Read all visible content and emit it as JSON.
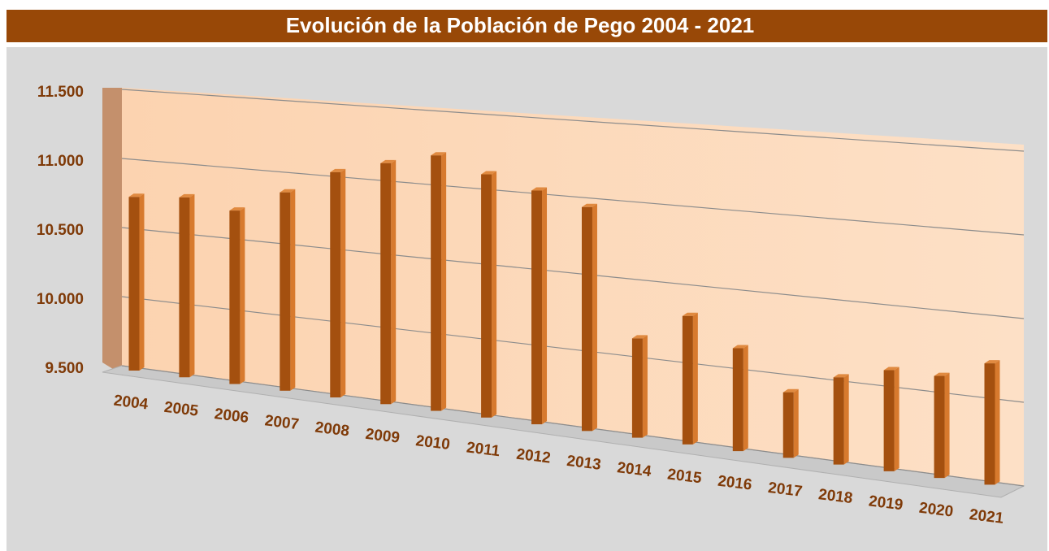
{
  "chart_data": {
    "type": "bar3d",
    "title": "Evolución de la Población de Pego 2004 - 2021",
    "categories": [
      "2004",
      "2005",
      "2006",
      "2007",
      "2008",
      "2009",
      "2010",
      "2011",
      "2012",
      "2013",
      "2014",
      "2015",
      "2016",
      "2017",
      "2018",
      "2019",
      "2020",
      "2021"
    ],
    "values": [
      10730,
      10760,
      10700,
      10860,
      11030,
      11120,
      11200,
      11100,
      11020,
      10940,
      10120,
      10300,
      10130,
      9890,
      10020,
      10100,
      10100,
      10210
    ],
    "color": "#a4500f",
    "ylim": [
      9500,
      11500
    ],
    "yticks": [
      {
        "value": 9500,
        "label": "9.500"
      },
      {
        "value": 10000,
        "label": "10.000"
      },
      {
        "value": 10500,
        "label": "10.500"
      },
      {
        "value": 11000,
        "label": "11.000"
      },
      {
        "value": 11500,
        "label": "11.500"
      }
    ],
    "grid": true
  }
}
